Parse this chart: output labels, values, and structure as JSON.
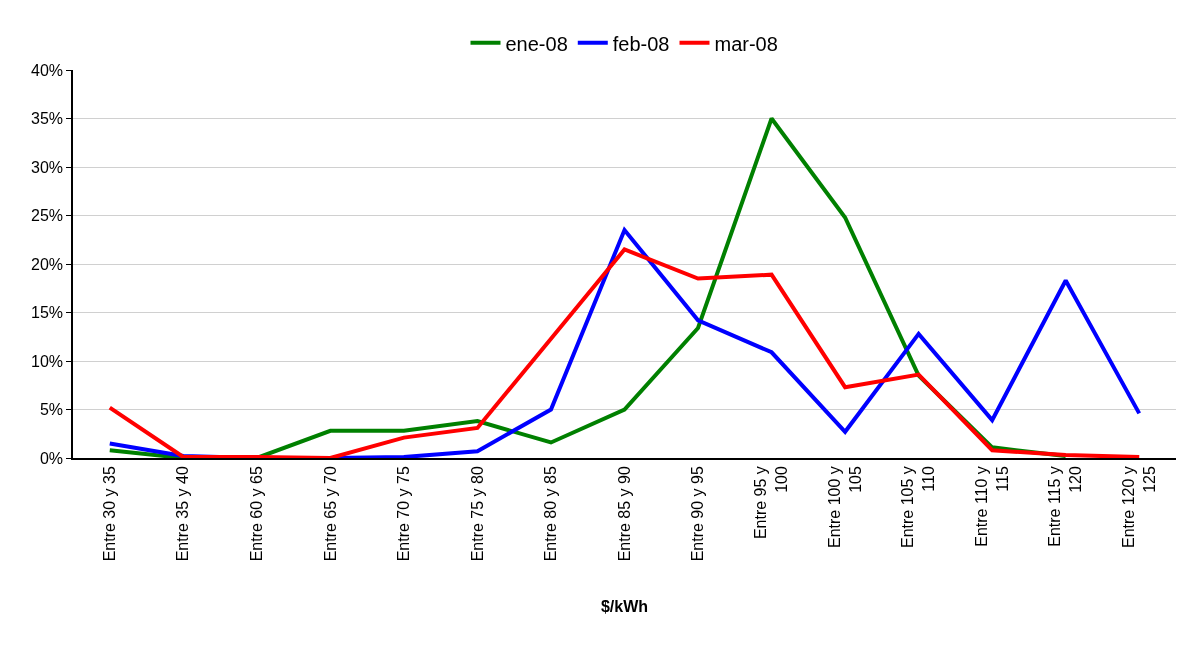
{
  "chart_data": {
    "type": "line",
    "xlabel": "$/kWh",
    "categories": [
      "Entre 30 y 35",
      "Entre 35 y 40",
      "Entre 60 y 65",
      "Entre 65 y 70",
      "Entre 70 y 75",
      "Entre 75 y 80",
      "Entre 80 y 85",
      "Entre 85 y 90",
      "Entre 90 y 95",
      "Entre 95 y 100",
      "Entre 100 y 105",
      "Entre 105 y 110",
      "Entre 110 y 115",
      "Entre 115 y 120",
      "Entre 120 y 125"
    ],
    "series": [
      {
        "name": "ene-08",
        "color": "#008000",
        "values": [
          0.8,
          0,
          0,
          2.8,
          2.8,
          3.8,
          1.6,
          5,
          13.4,
          35,
          24.8,
          8.5,
          1.1,
          0.2,
          null
        ]
      },
      {
        "name": "feb-08",
        "color": "#0000ff",
        "values": [
          1.5,
          0.2,
          0,
          0,
          0.1,
          0.7,
          5,
          23.5,
          14.2,
          10.9,
          2.7,
          12.8,
          3.9,
          18.3,
          4.6
        ]
      },
      {
        "name": "mar-08",
        "color": "#ff0000",
        "values": [
          5.2,
          0.1,
          0.1,
          0,
          2.1,
          3.1,
          12.3,
          21.5,
          18.5,
          18.9,
          7.3,
          8.6,
          0.8,
          0.3,
          0.1
        ]
      }
    ],
    "ylim": [
      0,
      40
    ],
    "yticks": [
      {
        "value": 0,
        "label": "0%"
      },
      {
        "value": 5,
        "label": "5%"
      },
      {
        "value": 10,
        "label": "10%"
      },
      {
        "value": 15,
        "label": "15%"
      },
      {
        "value": 20,
        "label": "20%"
      },
      {
        "value": 25,
        "label": "25%"
      },
      {
        "value": 30,
        "label": "30%"
      },
      {
        "value": 35,
        "label": "35%"
      },
      {
        "value": 40,
        "label": "40%"
      }
    ],
    "grid": "y",
    "legend": "top",
    "marker": "none",
    "line_style": "solid"
  }
}
